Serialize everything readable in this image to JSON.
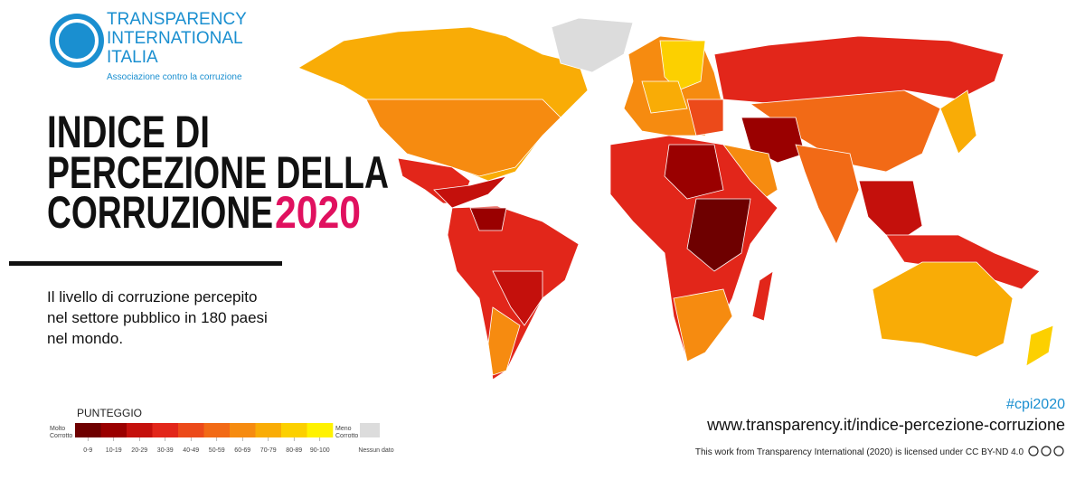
{
  "logo": {
    "lines": [
      "TRANSPARENCY",
      "INTERNATIONAL",
      "ITALIA"
    ],
    "tagline": "Associazione contro la corruzione"
  },
  "title": {
    "lines": [
      "INDICE DI",
      "PERCEZIONE DELLA",
      "CORRUZIONE"
    ],
    "year": "2020"
  },
  "subtitle": {
    "lines": [
      "Il livello di corruzione percepito",
      "nel settore pubblico in 180 paesi",
      "nel mondo."
    ]
  },
  "legend": {
    "title": "PUNTEGGIO",
    "low_end": [
      "Molto",
      "Corrotto"
    ],
    "high_end": [
      "Meno",
      "Corrotto"
    ],
    "bins": [
      {
        "label": "0-9",
        "color": "#6e0000"
      },
      {
        "label": "10-19",
        "color": "#9a0000"
      },
      {
        "label": "20-29",
        "color": "#c4100c"
      },
      {
        "label": "30-39",
        "color": "#e2261a"
      },
      {
        "label": "40-49",
        "color": "#ec4a1a"
      },
      {
        "label": "50-59",
        "color": "#f26a16"
      },
      {
        "label": "60-69",
        "color": "#f68b10"
      },
      {
        "label": "70-79",
        "color": "#f9ac06"
      },
      {
        "label": "80-89",
        "color": "#fcd000"
      },
      {
        "label": "90-100",
        "color": "#fff200"
      }
    ],
    "no_data": {
      "label": "Nessun dato",
      "color": "#dcdcdc"
    }
  },
  "footer": {
    "hashtag": "#cpi2020",
    "url": "www.transparency.it/indice-percezione-corruzione",
    "license": "This work from Transparency International (2020) is licensed under CC BY-ND 4.0"
  }
}
